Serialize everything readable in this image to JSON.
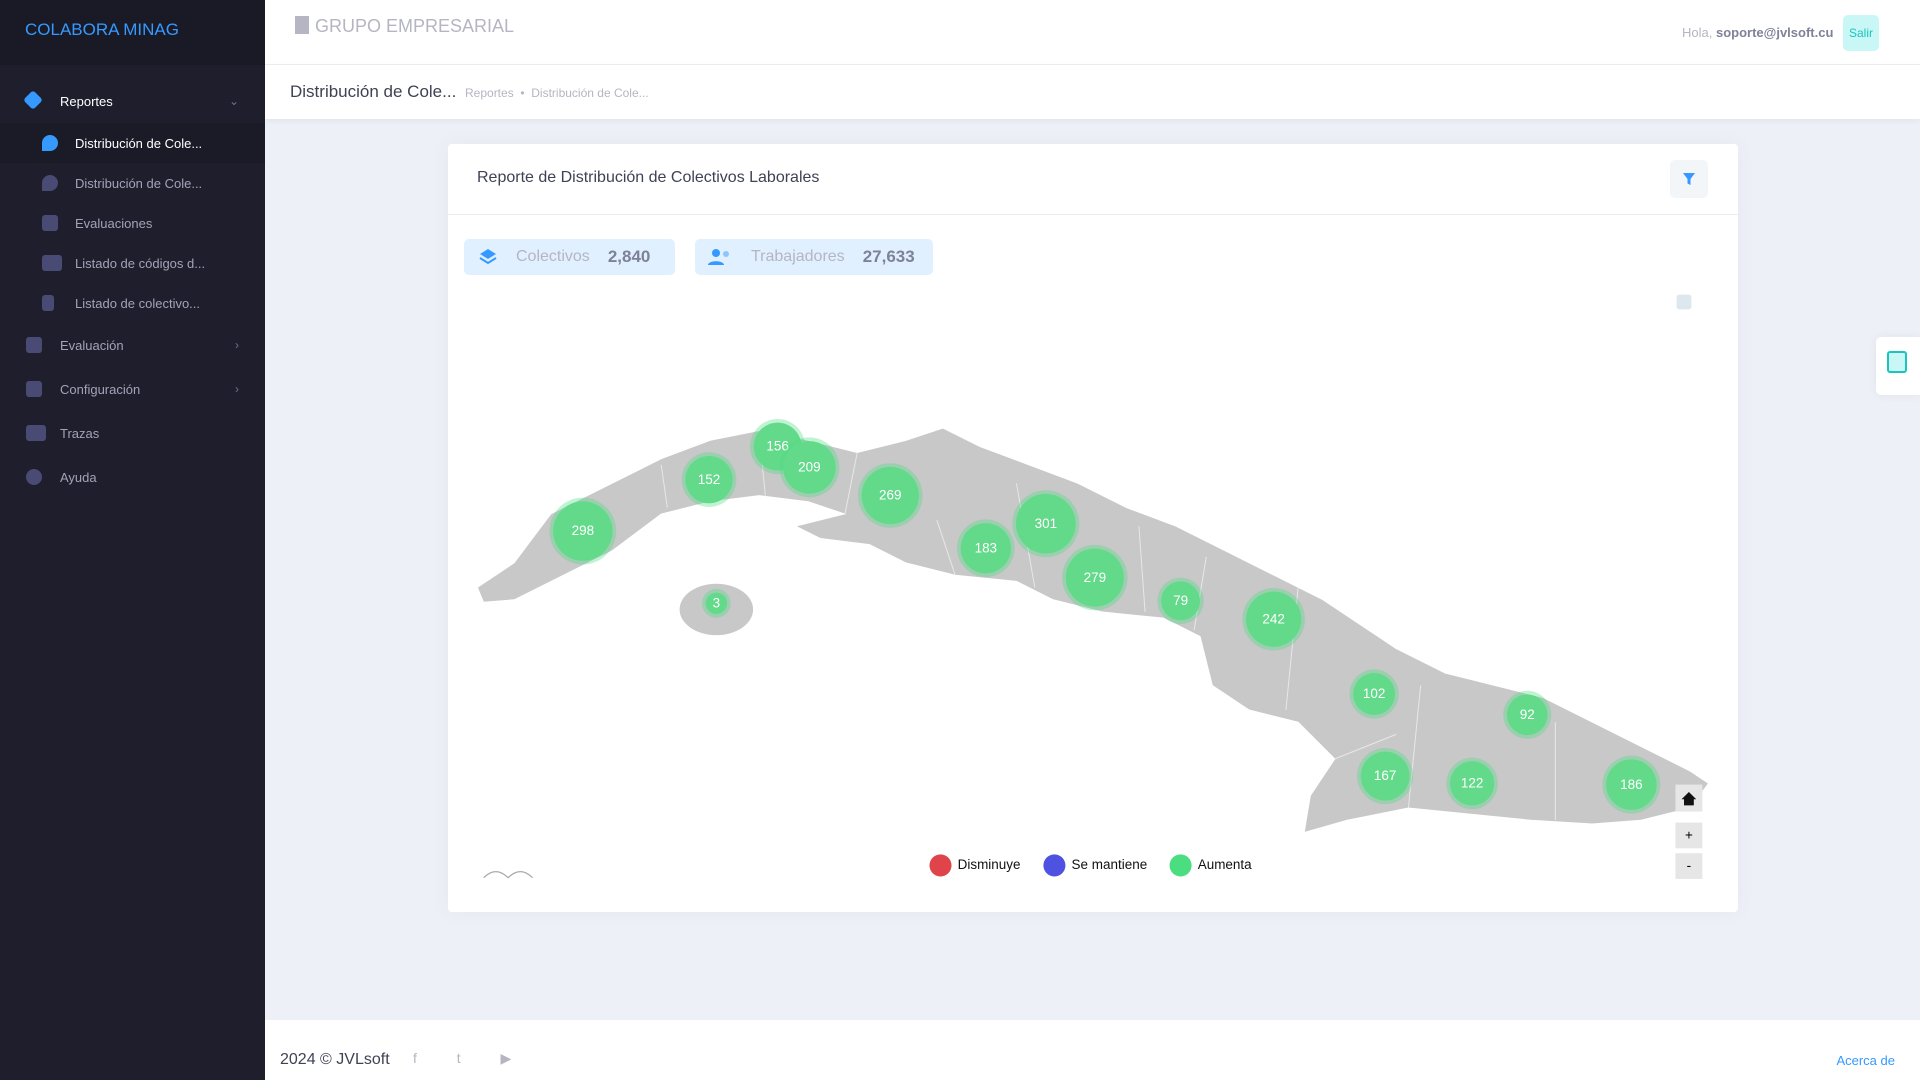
{
  "sidebar": {
    "brand": "COLABORA MINAG",
    "menu": [
      {
        "label": "Reportes",
        "children": [
          "Distribución de Cole...",
          "Distribución de Cole...",
          "Evaluaciones",
          "Listado de códigos d...",
          "Listado de colectivo..."
        ]
      },
      {
        "label": "Evaluación"
      },
      {
        "label": "Configuración"
      },
      {
        "label": "Trazas"
      },
      {
        "label": "Ayuda"
      }
    ]
  },
  "header": {
    "title": "GRUPO EMPRESARIAL",
    "greeting": "Hola,",
    "user": "soporte@jvlsoft.cu",
    "logout": "Salir"
  },
  "subheader": {
    "title": "Distribución de Cole...",
    "breadcrumb": [
      "Reportes",
      "Distribución de Cole..."
    ]
  },
  "card": {
    "title": "Reporte de Distribución de Colectivos Laborales",
    "stats": [
      {
        "label": "Colectivos",
        "value": "2,840"
      },
      {
        "label": "Trabajadores",
        "value": "27,633"
      }
    ],
    "map": {
      "clusters": [
        298,
        152,
        156,
        209,
        269,
        183,
        301,
        279,
        79,
        242,
        102,
        92,
        167,
        122,
        186,
        3
      ],
      "legend": [
        "Disminuye",
        "Se mantiene",
        "Aumenta"
      ],
      "zoom": [
        "+",
        "-"
      ]
    }
  },
  "footer": {
    "copyright": "2024 © JVLsoft",
    "link": "Acerca de"
  }
}
